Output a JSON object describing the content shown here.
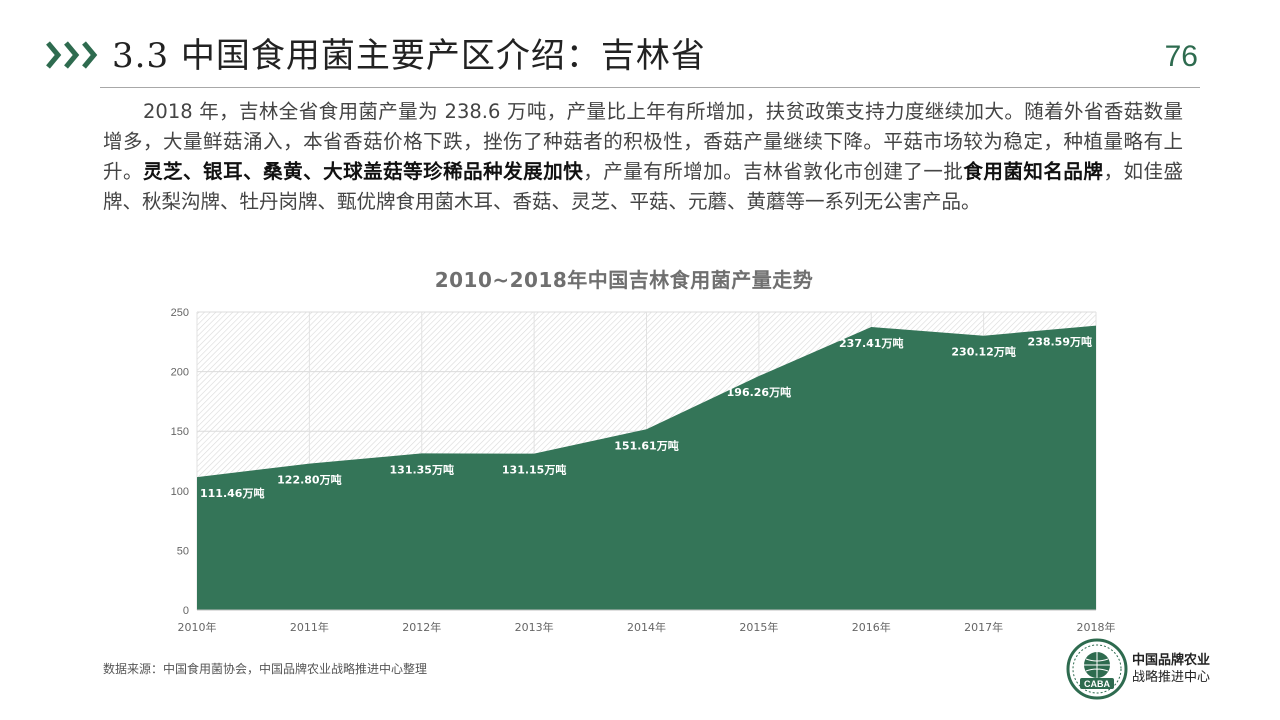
{
  "header": {
    "title": "3.3 中国食用菌主要产区介绍：吉林省",
    "page_number": "76"
  },
  "intro": {
    "t1": "2018 年，吉林全省食用菌产量为 238.6 万吨，产量比上年有所增加，扶贫政策支持力度继续加大。随着外省香菇数量增多，大量鲜菇涌入，本省香菇价格下跌，挫伤了种菇者的积极性，香菇产量继续下降。平菇市场较为稳定，种植量略有上升。",
    "b1": "灵芝、银耳、桑黄、大球盖菇等珍稀品种发展加快",
    "t2": "，产量有所增加。吉林省敦化市创建了一批",
    "b2": "食用菌知名品牌",
    "t3": "，如佳盛牌、秋梨沟牌、牡丹岗牌、甄优牌食用菌木耳、香菇、灵芝、平菇、元蘑、黄蘑等一系列无公害产品。"
  },
  "chart_data": {
    "type": "area",
    "title": "2010~2018年中国吉林食用菌产量走势",
    "categories": [
      "2010年",
      "2011年",
      "2012年",
      "2013年",
      "2014年",
      "2015年",
      "2016年",
      "2017年",
      "2018年"
    ],
    "values": [
      111.46,
      122.8,
      131.35,
      131.15,
      151.61,
      196.26,
      237.41,
      230.12,
      238.59
    ],
    "data_labels": [
      "111.46万吨",
      "122.80万吨",
      "131.35万吨",
      "131.15万吨",
      "151.61万吨",
      "196.26万吨",
      "237.41万吨",
      "230.12万吨",
      "238.59万吨"
    ],
    "yticks": [
      "0",
      "50",
      "100",
      "150",
      "200",
      "250"
    ],
    "ylim": [
      0,
      250
    ],
    "xlabel": "",
    "ylabel": "",
    "grid": true,
    "legend": "none",
    "fill_color": "#347558",
    "label_color": "#ffffff"
  },
  "footer": {
    "source": "数据来源：中国食用菌协会，中国品牌农业战略推进中心整理",
    "org_line1": "中国品牌农业",
    "org_line2": "战略推进中心",
    "logo_text": "CABA"
  },
  "theme": {
    "accent": "#2e6b4f"
  }
}
